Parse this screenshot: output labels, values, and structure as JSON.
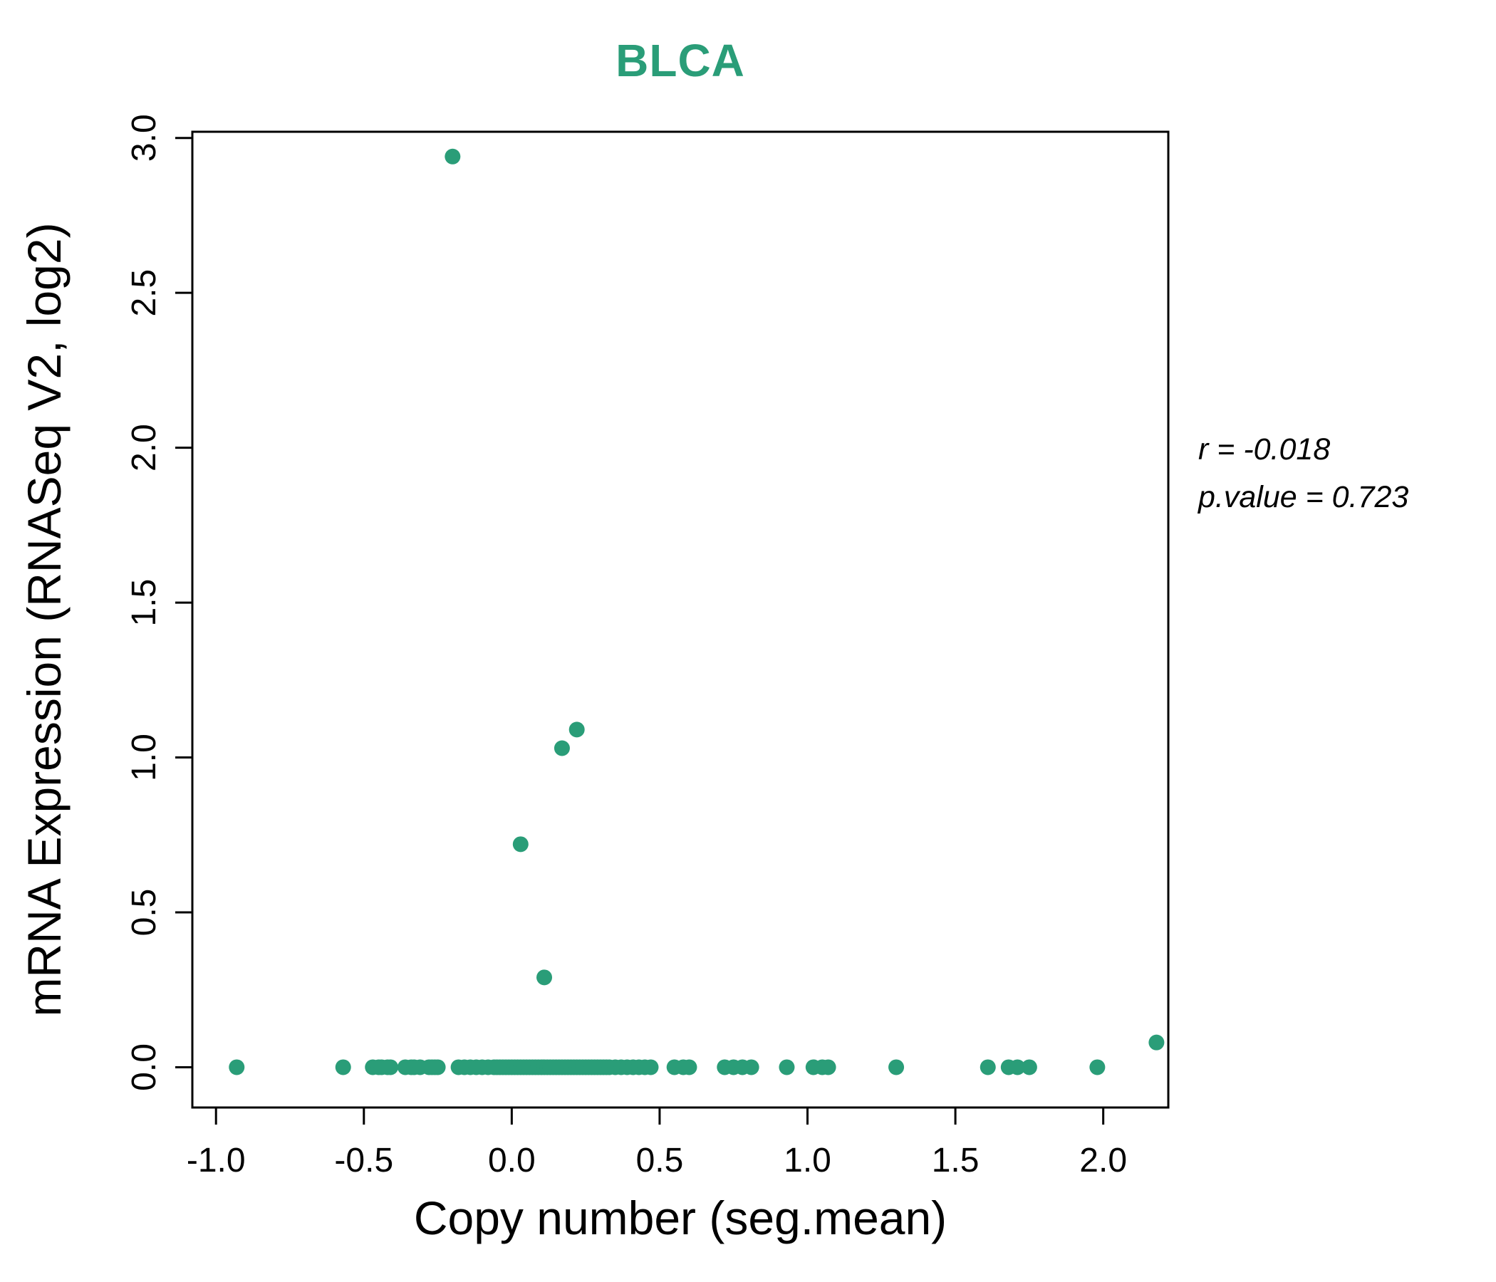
{
  "title_color": "#2a9d78",
  "chart_data": {
    "type": "scatter",
    "title": "BLCA",
    "xlabel": "Copy number (seg.mean)",
    "ylabel": "mRNA Expression (RNASeq V2, log2)",
    "xlim": [
      -1.08,
      2.22
    ],
    "ylim": [
      -0.13,
      3.02
    ],
    "x_ticks": [
      -1.0,
      -0.5,
      0.0,
      0.5,
      1.0,
      1.5,
      2.0
    ],
    "x_tick_labels": [
      "-1.0",
      "-0.5",
      "0.0",
      "0.5",
      "1.0",
      "1.5",
      "2.0"
    ],
    "y_ticks": [
      0.0,
      0.5,
      1.0,
      1.5,
      2.0,
      2.5,
      3.0
    ],
    "y_tick_labels": [
      "0.0",
      "0.5",
      "1.0",
      "1.5",
      "2.0",
      "2.5",
      "3.0"
    ],
    "grid": false,
    "legend": "none",
    "point_color": "#2a9d78",
    "annotation": {
      "line1": "r = -0.018",
      "line2": "p.value = 0.723"
    },
    "points": [
      [
        -0.2,
        2.94
      ],
      [
        0.22,
        1.09
      ],
      [
        0.17,
        1.03
      ],
      [
        0.03,
        0.72
      ],
      [
        0.11,
        0.29
      ],
      [
        2.18,
        0.08
      ],
      [
        -0.93,
        0.0
      ],
      [
        -0.57,
        0.0
      ],
      [
        -0.47,
        0.0
      ],
      [
        -0.45,
        0.0
      ],
      [
        -0.44,
        0.0
      ],
      [
        -0.42,
        0.0
      ],
      [
        -0.41,
        0.0
      ],
      [
        -0.36,
        0.0
      ],
      [
        -0.34,
        0.0
      ],
      [
        -0.33,
        0.0
      ],
      [
        -0.31,
        0.0
      ],
      [
        -0.28,
        0.0
      ],
      [
        -0.27,
        0.0
      ],
      [
        -0.26,
        0.0
      ],
      [
        -0.25,
        0.0
      ],
      [
        -0.18,
        0.0
      ],
      [
        -0.16,
        0.0
      ],
      [
        -0.14,
        0.0
      ],
      [
        -0.12,
        0.0
      ],
      [
        -0.1,
        0.0
      ],
      [
        -0.08,
        0.0
      ],
      [
        -0.06,
        0.0
      ],
      [
        -0.05,
        0.0
      ],
      [
        -0.04,
        0.0
      ],
      [
        -0.03,
        0.0
      ],
      [
        -0.02,
        0.0
      ],
      [
        -0.01,
        0.0
      ],
      [
        0.0,
        0.0
      ],
      [
        0.01,
        0.0
      ],
      [
        0.02,
        0.0
      ],
      [
        0.03,
        0.0
      ],
      [
        0.04,
        0.0
      ],
      [
        0.05,
        0.0
      ],
      [
        0.06,
        0.0
      ],
      [
        0.07,
        0.0
      ],
      [
        0.08,
        0.0
      ],
      [
        0.09,
        0.0
      ],
      [
        0.1,
        0.0
      ],
      [
        0.11,
        0.0
      ],
      [
        0.12,
        0.0
      ],
      [
        0.13,
        0.0
      ],
      [
        0.14,
        0.0
      ],
      [
        0.15,
        0.0
      ],
      [
        0.16,
        0.0
      ],
      [
        0.17,
        0.0
      ],
      [
        0.18,
        0.0
      ],
      [
        0.19,
        0.0
      ],
      [
        0.2,
        0.0
      ],
      [
        0.21,
        0.0
      ],
      [
        0.22,
        0.0
      ],
      [
        0.23,
        0.0
      ],
      [
        0.24,
        0.0
      ],
      [
        0.25,
        0.0
      ],
      [
        0.26,
        0.0
      ],
      [
        0.27,
        0.0
      ],
      [
        0.28,
        0.0
      ],
      [
        0.29,
        0.0
      ],
      [
        0.3,
        0.0
      ],
      [
        0.31,
        0.0
      ],
      [
        0.32,
        0.0
      ],
      [
        0.33,
        0.0
      ],
      [
        0.35,
        0.0
      ],
      [
        0.37,
        0.0
      ],
      [
        0.39,
        0.0
      ],
      [
        0.41,
        0.0
      ],
      [
        0.43,
        0.0
      ],
      [
        0.45,
        0.0
      ],
      [
        0.47,
        0.0
      ],
      [
        0.55,
        0.0
      ],
      [
        0.58,
        0.0
      ],
      [
        0.6,
        0.0
      ],
      [
        0.72,
        0.0
      ],
      [
        0.75,
        0.0
      ],
      [
        0.78,
        0.0
      ],
      [
        0.81,
        0.0
      ],
      [
        0.93,
        0.0
      ],
      [
        1.02,
        0.0
      ],
      [
        1.05,
        0.0
      ],
      [
        1.07,
        0.0
      ],
      [
        1.3,
        0.0
      ],
      [
        1.61,
        0.0
      ],
      [
        1.68,
        0.0
      ],
      [
        1.71,
        0.0
      ],
      [
        1.75,
        0.0
      ],
      [
        1.98,
        0.0
      ]
    ]
  }
}
